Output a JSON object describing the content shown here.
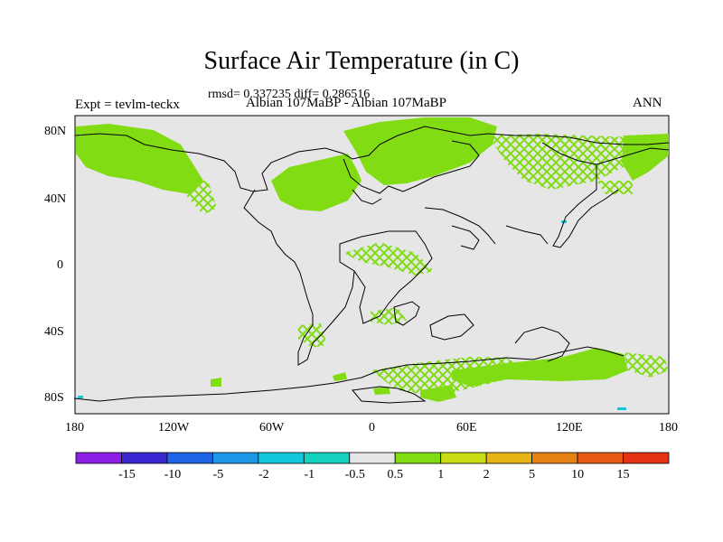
{
  "title": "Surface Air Temperature (in C)",
  "subtitle": "rmsd= 0.337235 diff= 0.286516",
  "left_label": "Expt = tevlm-teckx",
  "center_label": "Albian  107MaBP - Albian  107MaBP",
  "right_label": "ANN",
  "lat_labels": [
    "80N",
    "40N",
    "0",
    "40S",
    "80S"
  ],
  "lon_labels": [
    "180",
    "120W",
    "60W",
    "0",
    "60E",
    "120E",
    "180"
  ],
  "colorbar": {
    "labels": [
      "-15",
      "-10",
      "-5",
      "-2",
      "-1",
      "-0.5",
      "0.5",
      "1",
      "2",
      "5",
      "10",
      "15"
    ],
    "colors": [
      "#8c1ee6",
      "#3c28d2",
      "#1e64e6",
      "#1e96e6",
      "#14c8dc",
      "#14d2be",
      "#e6e6e6",
      "#82dc14",
      "#c8dc14",
      "#e6b414",
      "#e68214",
      "#e65a14",
      "#e63214"
    ]
  },
  "map": {
    "background": "#e6e6e6",
    "anomaly_color": "#82dc14",
    "cool_color": "#14c8dc"
  }
}
